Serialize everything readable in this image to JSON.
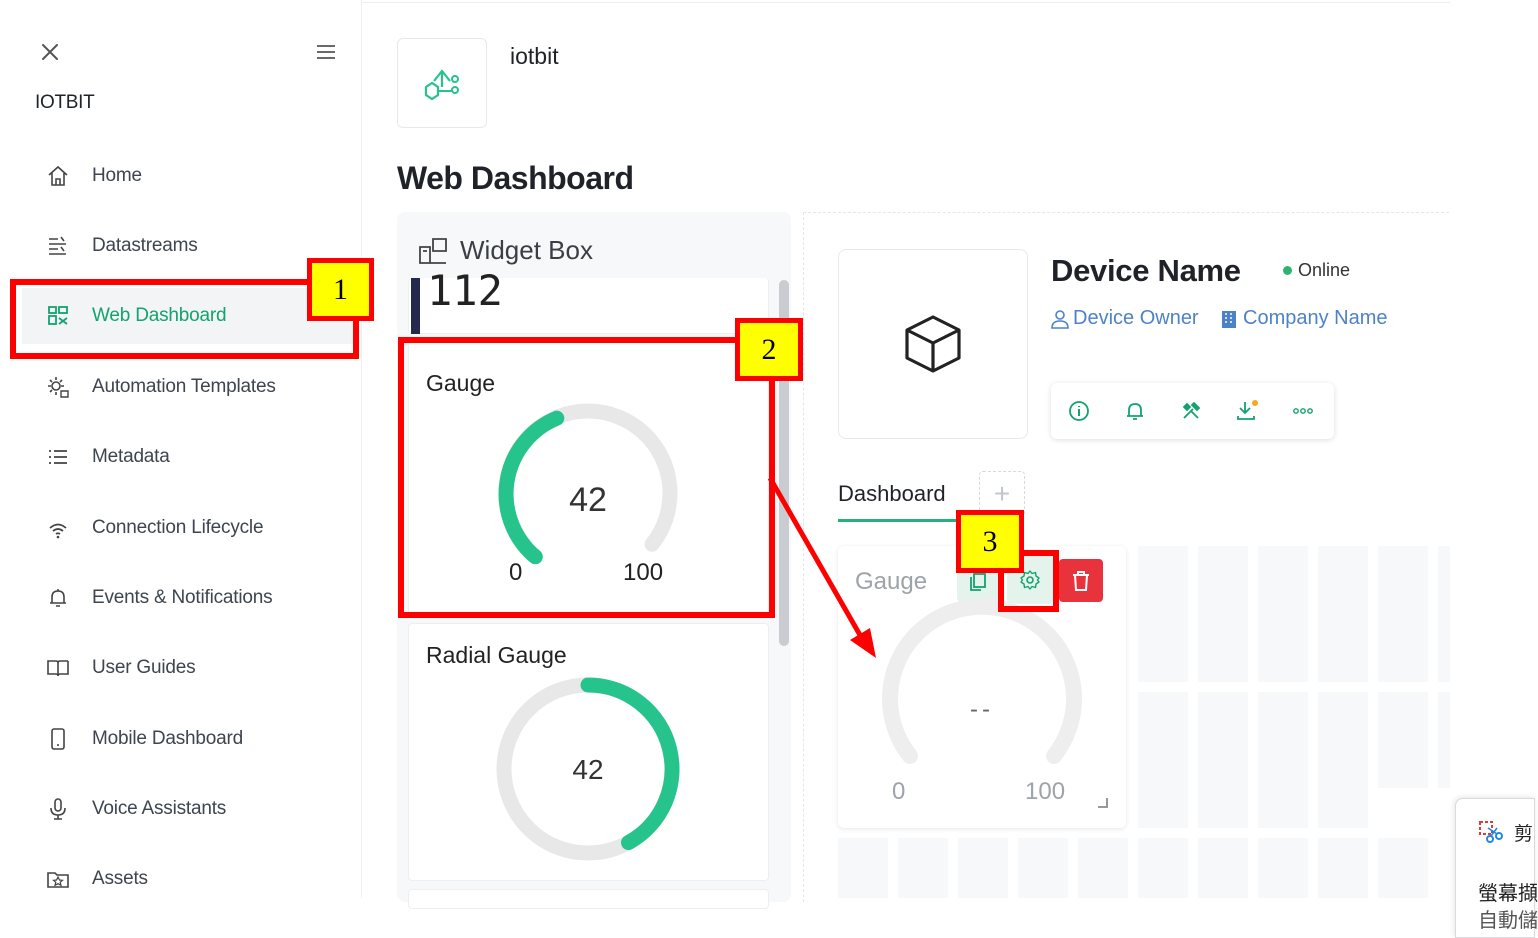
{
  "sidebar": {
    "org_name": "IOTBIT",
    "items": [
      {
        "label": "Home",
        "icon": "home-icon"
      },
      {
        "label": "Datastreams",
        "icon": "datastreams-icon"
      },
      {
        "label": "Web Dashboard",
        "icon": "web-dashboard-icon",
        "active": true
      },
      {
        "label": "Automation Templates",
        "icon": "automation-icon"
      },
      {
        "label": "Metadata",
        "icon": "list-icon"
      },
      {
        "label": "Connection Lifecycle",
        "icon": "wifi-icon"
      },
      {
        "label": "Events & Notifications",
        "icon": "bell-icon"
      },
      {
        "label": "User Guides",
        "icon": "book-icon"
      },
      {
        "label": "Mobile Dashboard",
        "icon": "phone-icon"
      },
      {
        "label": "Voice Assistants",
        "icon": "microphone-icon"
      },
      {
        "label": "Assets",
        "icon": "assets-icon"
      }
    ]
  },
  "header": {
    "template_name": "iotbit",
    "page_title": "Web Dashboard"
  },
  "widget_box": {
    "title": "Widget Box",
    "partial_value": "112",
    "gauge": {
      "name": "Gauge",
      "value": "42",
      "min": "0",
      "max": "100",
      "fraction": 0.42
    },
    "radial_gauge": {
      "name": "Radial Gauge",
      "value": "42",
      "fraction": 0.42
    }
  },
  "device": {
    "name": "Device Name",
    "status": "Online",
    "owner": "Device Owner",
    "company": "Company Name",
    "actions": [
      "info-icon",
      "bell-icon",
      "tools-icon",
      "download-icon",
      "more-icon"
    ]
  },
  "dashboard": {
    "tab_label": "Dashboard",
    "add_label": "+",
    "placed_widget": {
      "name": "Gauge",
      "value": "--",
      "min": "0",
      "max": "100"
    }
  },
  "annotations": [
    "1",
    "2",
    "3"
  ],
  "popup": {
    "title": "剪",
    "line1": "螢幕擷",
    "line2": "自動儲"
  },
  "colors": {
    "accent": "#12a36e",
    "gauge": "#26c48c",
    "annotation": "#ff0000",
    "tag": "#ffff00",
    "delete": "#e8323c"
  }
}
